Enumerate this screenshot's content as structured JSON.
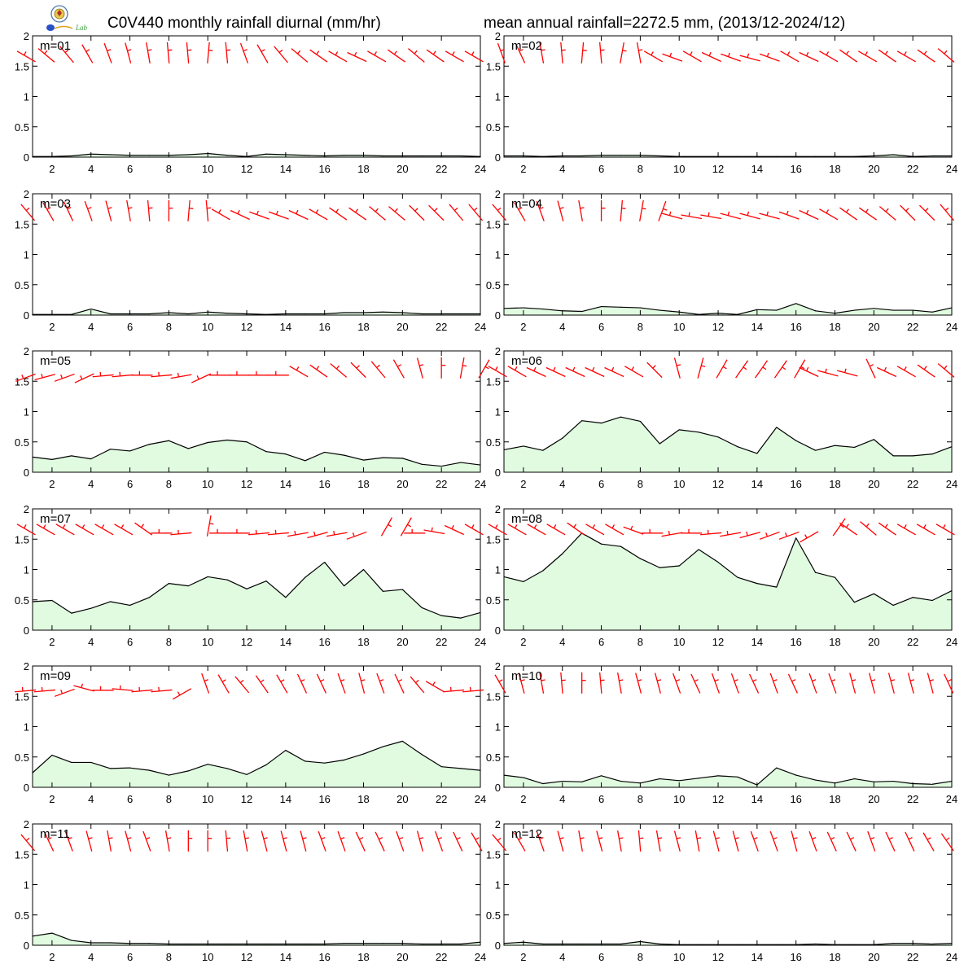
{
  "title_left": "C0V440 monthly rainfall diurnal (mm/hr)",
  "title_right": "mean annual rainfall=2272.5 mm, (2013/12-2024/12)",
  "logo_text": "Lab",
  "colors": {
    "line": "#000000",
    "fill": "#e0fbe0",
    "barb": "#ff0000"
  },
  "chart_data": [
    {
      "type": "area",
      "panel_label": "m=01",
      "x": [
        1,
        2,
        3,
        4,
        5,
        6,
        7,
        8,
        9,
        10,
        11,
        12,
        13,
        14,
        15,
        16,
        17,
        18,
        19,
        20,
        21,
        22,
        23,
        24
      ],
      "values": [
        0.01,
        0.01,
        0.02,
        0.05,
        0.04,
        0.03,
        0.03,
        0.03,
        0.04,
        0.06,
        0.03,
        0.01,
        0.05,
        0.04,
        0.03,
        0.02,
        0.03,
        0.03,
        0.02,
        0.02,
        0.02,
        0.02,
        0.02,
        0.01
      ],
      "wind_dir": [
        300,
        310,
        320,
        330,
        340,
        345,
        350,
        355,
        355,
        5,
        355,
        340,
        330,
        320,
        310,
        305,
        300,
        295,
        300,
        305,
        310,
        305,
        300,
        300
      ],
      "xticks": [
        2,
        4,
        6,
        8,
        10,
        12,
        14,
        16,
        18,
        20,
        22,
        24
      ],
      "yticks": [
        0,
        0.5,
        1,
        1.5,
        2
      ],
      "ylim": [
        0,
        2
      ],
      "xlim": [
        1,
        24
      ]
    },
    {
      "type": "area",
      "panel_label": "m=02",
      "x": [
        1,
        2,
        3,
        4,
        5,
        6,
        7,
        8,
        9,
        10,
        11,
        12,
        13,
        14,
        15,
        16,
        17,
        18,
        19,
        20,
        21,
        22,
        23,
        24
      ],
      "values": [
        0.02,
        0.02,
        0.01,
        0.02,
        0.02,
        0.03,
        0.03,
        0.03,
        0.02,
        0.01,
        0.01,
        0.01,
        0.01,
        0.01,
        0.01,
        0.01,
        0.01,
        0.01,
        0.01,
        0.02,
        0.04,
        0.01,
        0.02,
        0.02
      ],
      "wind_dir": [
        340,
        335,
        350,
        355,
        5,
        355,
        10,
        350,
        300,
        290,
        300,
        295,
        290,
        285,
        290,
        300,
        295,
        300,
        305,
        300,
        305,
        300,
        305,
        310
      ],
      "xticks": [
        2,
        4,
        6,
        8,
        10,
        12,
        14,
        16,
        18,
        20,
        22,
        24
      ],
      "yticks": [
        0,
        0.5,
        1,
        1.5,
        2
      ],
      "ylim": [
        0,
        2
      ],
      "xlim": [
        1,
        24
      ]
    },
    {
      "type": "area",
      "panel_label": "m=03",
      "x": [
        1,
        2,
        3,
        4,
        5,
        6,
        7,
        8,
        9,
        10,
        11,
        12,
        13,
        14,
        15,
        16,
        17,
        18,
        19,
        20,
        21,
        22,
        23,
        24
      ],
      "values": [
        0.01,
        0.01,
        0.01,
        0.1,
        0.02,
        0.02,
        0.02,
        0.04,
        0.02,
        0.05,
        0.03,
        0.02,
        0.01,
        0.02,
        0.02,
        0.02,
        0.04,
        0.04,
        0.05,
        0.04,
        0.02,
        0.02,
        0.02,
        0.02
      ],
      "wind_dir": [
        320,
        330,
        335,
        340,
        345,
        350,
        355,
        0,
        5,
        355,
        300,
        295,
        290,
        290,
        295,
        300,
        305,
        305,
        310,
        310,
        315,
        315,
        320,
        320
      ],
      "xticks": [
        2,
        4,
        6,
        8,
        10,
        12,
        14,
        16,
        18,
        20,
        22,
        24
      ],
      "yticks": [
        0,
        0.5,
        1,
        1.5,
        2
      ],
      "ylim": [
        0,
        2
      ],
      "xlim": [
        1,
        24
      ]
    },
    {
      "type": "area",
      "panel_label": "m=04",
      "x": [
        1,
        2,
        3,
        4,
        5,
        6,
        7,
        8,
        9,
        10,
        11,
        12,
        13,
        14,
        15,
        16,
        17,
        18,
        19,
        20,
        21,
        22,
        23,
        24
      ],
      "values": [
        0.11,
        0.12,
        0.1,
        0.07,
        0.06,
        0.14,
        0.13,
        0.12,
        0.08,
        0.05,
        0.01,
        0.03,
        0.01,
        0.09,
        0.08,
        0.19,
        0.07,
        0.03,
        0.08,
        0.11,
        0.08,
        0.08,
        0.05,
        0.12
      ],
      "wind_dir": [
        320,
        330,
        340,
        345,
        350,
        0,
        5,
        10,
        20,
        285,
        280,
        280,
        285,
        285,
        285,
        290,
        295,
        300,
        305,
        305,
        310,
        315,
        315,
        320
      ],
      "xticks": [
        2,
        4,
        6,
        8,
        10,
        12,
        14,
        16,
        18,
        20,
        22,
        24
      ],
      "yticks": [
        0,
        0.5,
        1,
        1.5,
        2
      ],
      "ylim": [
        0,
        2
      ],
      "xlim": [
        1,
        24
      ]
    },
    {
      "type": "area",
      "panel_label": "m=05",
      "x": [
        1,
        2,
        3,
        4,
        5,
        6,
        7,
        8,
        9,
        10,
        11,
        12,
        13,
        14,
        15,
        16,
        17,
        18,
        19,
        20,
        21,
        22,
        23,
        24
      ],
      "values": [
        0.25,
        0.21,
        0.27,
        0.22,
        0.38,
        0.35,
        0.46,
        0.52,
        0.39,
        0.49,
        0.53,
        0.5,
        0.34,
        0.3,
        0.19,
        0.33,
        0.28,
        0.2,
        0.24,
        0.23,
        0.13,
        0.1,
        0.16,
        0.12
      ],
      "wind_dir": [
        250,
        255,
        250,
        245,
        265,
        265,
        270,
        265,
        260,
        245,
        270,
        270,
        270,
        270,
        300,
        305,
        310,
        315,
        320,
        330,
        345,
        0,
        10,
        30
      ],
      "xticks": [
        2,
        4,
        6,
        8,
        10,
        12,
        14,
        16,
        18,
        20,
        22,
        24
      ],
      "yticks": [
        0,
        0.5,
        1,
        1.5,
        2
      ],
      "ylim": [
        0,
        2
      ],
      "xlim": [
        1,
        24
      ]
    },
    {
      "type": "area",
      "panel_label": "m=06",
      "x": [
        1,
        2,
        3,
        4,
        5,
        6,
        7,
        8,
        9,
        10,
        11,
        12,
        13,
        14,
        15,
        16,
        17,
        18,
        19,
        20,
        21,
        22,
        23,
        24
      ],
      "values": [
        0.37,
        0.43,
        0.36,
        0.56,
        0.85,
        0.81,
        0.91,
        0.84,
        0.47,
        0.7,
        0.66,
        0.58,
        0.42,
        0.31,
        0.74,
        0.52,
        0.36,
        0.44,
        0.41,
        0.54,
        0.27,
        0.27,
        0.3,
        0.42
      ],
      "wind_dir": [
        300,
        300,
        295,
        295,
        295,
        295,
        295,
        300,
        315,
        345,
        15,
        30,
        35,
        35,
        35,
        30,
        295,
        285,
        285,
        335,
        295,
        300,
        305,
        310
      ],
      "xticks": [
        2,
        4,
        6,
        8,
        10,
        12,
        14,
        16,
        18,
        20,
        22,
        24
      ],
      "yticks": [
        0,
        0.5,
        1,
        1.5,
        2
      ],
      "ylim": [
        0,
        2
      ],
      "xlim": [
        1,
        24
      ]
    },
    {
      "type": "area",
      "panel_label": "m=07",
      "x": [
        1,
        2,
        3,
        4,
        5,
        6,
        7,
        8,
        9,
        10,
        11,
        12,
        13,
        14,
        15,
        16,
        17,
        18,
        19,
        20,
        21,
        22,
        23,
        24
      ],
      "values": [
        0.47,
        0.49,
        0.28,
        0.36,
        0.47,
        0.41,
        0.54,
        0.77,
        0.73,
        0.88,
        0.83,
        0.68,
        0.81,
        0.54,
        0.87,
        1.12,
        0.73,
        1.0,
        0.64,
        0.67,
        0.37,
        0.24,
        0.2,
        0.29
      ],
      "wind_dir": [
        300,
        300,
        300,
        300,
        300,
        300,
        305,
        270,
        265,
        10,
        270,
        270,
        265,
        265,
        260,
        255,
        260,
        250,
        30,
        30,
        270,
        280,
        295,
        300
      ],
      "xticks": [
        2,
        4,
        6,
        8,
        10,
        12,
        14,
        16,
        18,
        20,
        22,
        24
      ],
      "yticks": [
        0,
        0.5,
        1,
        1.5,
        2
      ],
      "ylim": [
        0,
        2
      ],
      "xlim": [
        1,
        24
      ]
    },
    {
      "type": "area",
      "panel_label": "m=08",
      "x": [
        1,
        2,
        3,
        4,
        5,
        6,
        7,
        8,
        9,
        10,
        11,
        12,
        13,
        14,
        15,
        16,
        17,
        18,
        19,
        20,
        21,
        22,
        23,
        24
      ],
      "values": [
        0.88,
        0.8,
        0.98,
        1.26,
        1.6,
        1.42,
        1.38,
        1.18,
        1.03,
        1.06,
        1.33,
        1.12,
        0.87,
        0.77,
        0.71,
        1.52,
        0.95,
        0.87,
        0.46,
        0.6,
        0.41,
        0.54,
        0.49,
        0.65
      ],
      "wind_dir": [
        300,
        300,
        300,
        300,
        305,
        300,
        300,
        290,
        270,
        260,
        270,
        265,
        260,
        255,
        250,
        250,
        240,
        35,
        305,
        310,
        305,
        300,
        300,
        300
      ],
      "xticks": [
        2,
        4,
        6,
        8,
        10,
        12,
        14,
        16,
        18,
        20,
        22,
        24
      ],
      "yticks": [
        0,
        0.5,
        1,
        1.5,
        2
      ],
      "ylim": [
        0,
        2
      ],
      "xlim": [
        1,
        24
      ]
    },
    {
      "type": "area",
      "panel_label": "m=09",
      "x": [
        1,
        2,
        3,
        4,
        5,
        6,
        7,
        8,
        9,
        10,
        11,
        12,
        13,
        14,
        15,
        16,
        17,
        18,
        19,
        20,
        21,
        22,
        23,
        24
      ],
      "values": [
        0.24,
        0.53,
        0.41,
        0.41,
        0.31,
        0.32,
        0.28,
        0.2,
        0.27,
        0.38,
        0.31,
        0.21,
        0.37,
        0.61,
        0.43,
        0.4,
        0.45,
        0.55,
        0.67,
        0.76,
        0.54,
        0.34,
        0.31,
        0.28
      ],
      "wind_dir": [
        265,
        265,
        250,
        285,
        270,
        275,
        265,
        265,
        240,
        340,
        330,
        320,
        325,
        330,
        335,
        335,
        340,
        345,
        340,
        335,
        320,
        300,
        265,
        265
      ],
      "xticks": [
        2,
        4,
        6,
        8,
        10,
        12,
        14,
        16,
        18,
        20,
        22,
        24
      ],
      "yticks": [
        0,
        0.5,
        1,
        1.5,
        2
      ],
      "ylim": [
        0,
        2
      ],
      "xlim": [
        1,
        24
      ]
    },
    {
      "type": "area",
      "panel_label": "m=10",
      "x": [
        1,
        2,
        3,
        4,
        5,
        6,
        7,
        8,
        9,
        10,
        11,
        12,
        13,
        14,
        15,
        16,
        17,
        18,
        19,
        20,
        21,
        22,
        23,
        24
      ],
      "values": [
        0.2,
        0.16,
        0.06,
        0.1,
        0.09,
        0.19,
        0.1,
        0.07,
        0.14,
        0.11,
        0.15,
        0.19,
        0.17,
        0.04,
        0.32,
        0.2,
        0.12,
        0.07,
        0.14,
        0.09,
        0.1,
        0.06,
        0.05,
        0.1
      ],
      "wind_dir": [
        330,
        345,
        350,
        355,
        0,
        355,
        350,
        345,
        345,
        340,
        335,
        340,
        340,
        335,
        340,
        335,
        340,
        340,
        345,
        345,
        345,
        345,
        345,
        335
      ],
      "xticks": [
        2,
        4,
        6,
        8,
        10,
        12,
        14,
        16,
        18,
        20,
        22,
        24
      ],
      "yticks": [
        0,
        0.5,
        1,
        1.5,
        2
      ],
      "ylim": [
        0,
        2
      ],
      "xlim": [
        1,
        24
      ]
    },
    {
      "type": "area",
      "panel_label": "m=11",
      "x": [
        1,
        2,
        3,
        4,
        5,
        6,
        7,
        8,
        9,
        10,
        11,
        12,
        13,
        14,
        15,
        16,
        17,
        18,
        19,
        20,
        21,
        22,
        23,
        24
      ],
      "values": [
        0.15,
        0.2,
        0.08,
        0.04,
        0.04,
        0.03,
        0.03,
        0.02,
        0.02,
        0.02,
        0.02,
        0.02,
        0.02,
        0.02,
        0.02,
        0.02,
        0.03,
        0.03,
        0.03,
        0.03,
        0.02,
        0.02,
        0.02,
        0.05
      ],
      "wind_dir": [
        320,
        335,
        340,
        345,
        350,
        345,
        340,
        350,
        0,
        0,
        355,
        350,
        345,
        345,
        345,
        340,
        340,
        335,
        335,
        340,
        345,
        340,
        335,
        330
      ],
      "xticks": [
        2,
        4,
        6,
        8,
        10,
        12,
        14,
        16,
        18,
        20,
        22,
        24
      ],
      "yticks": [
        0,
        0.5,
        1,
        1.5,
        2
      ],
      "ylim": [
        0,
        2
      ],
      "xlim": [
        1,
        24
      ]
    },
    {
      "type": "area",
      "panel_label": "m=12",
      "x": [
        1,
        2,
        3,
        4,
        5,
        6,
        7,
        8,
        9,
        10,
        11,
        12,
        13,
        14,
        15,
        16,
        17,
        18,
        19,
        20,
        21,
        22,
        23,
        24
      ],
      "values": [
        0.03,
        0.05,
        0.02,
        0.02,
        0.02,
        0.02,
        0.02,
        0.06,
        0.02,
        0.01,
        0.01,
        0.01,
        0.01,
        0.01,
        0.01,
        0.01,
        0.02,
        0.01,
        0.01,
        0.01,
        0.03,
        0.03,
        0.02,
        0.03
      ],
      "wind_dir": [
        320,
        330,
        340,
        345,
        350,
        345,
        350,
        355,
        350,
        345,
        350,
        345,
        345,
        340,
        340,
        345,
        340,
        335,
        335,
        340,
        335,
        335,
        330,
        325
      ],
      "xticks": [
        2,
        4,
        6,
        8,
        10,
        12,
        14,
        16,
        18,
        20,
        22,
        24
      ],
      "yticks": [
        0,
        0.5,
        1,
        1.5,
        2
      ],
      "ylim": [
        0,
        2
      ],
      "xlim": [
        1,
        24
      ]
    }
  ]
}
